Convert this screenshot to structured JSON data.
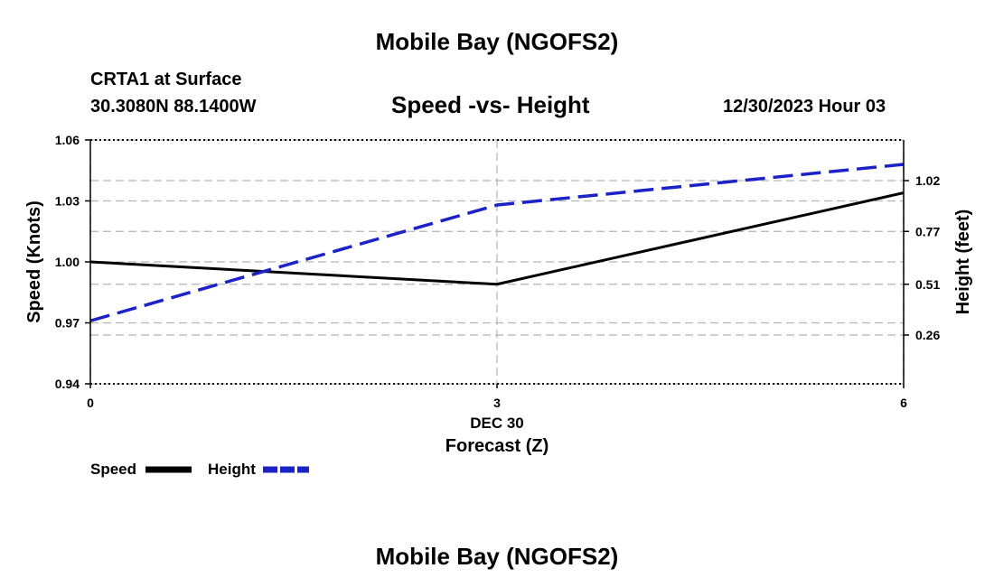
{
  "page": {
    "title_top": "Mobile Bay (NGOFS2)",
    "title_bottom": "Mobile Bay (NGOFS2)",
    "station": "CRTA1 at Surface",
    "coords": "30.3080N  88.1400W",
    "timestamp": "12/30/2023 Hour 03"
  },
  "colors": {
    "speed": "#000000",
    "height": "#1a22c8",
    "grid": "#b4b4b4"
  },
  "chart_data": {
    "type": "line",
    "title": "Speed -vs- Height",
    "xlabel": "Forecast (Z)",
    "x_date_label": "DEC 30",
    "ylabel": "Speed (Knots)",
    "y2label": "Height (feet)",
    "x": [
      0,
      3,
      6
    ],
    "xlim": [
      0,
      6
    ],
    "xticks": [
      "0",
      "3",
      "6"
    ],
    "ylim": [
      0.94,
      1.06
    ],
    "yticks": [
      "0.94",
      "0.97",
      "1.00",
      "1.03",
      "1.06"
    ],
    "y2lim": [
      0.02,
      1.22
    ],
    "y2ticks": [
      "0.26",
      "0.51",
      "0.77",
      "1.02"
    ],
    "grid": true,
    "series": [
      {
        "name": "Speed",
        "axis": "left",
        "style": "solid",
        "x": [
          0,
          3,
          6
        ],
        "values": [
          1.0,
          0.989,
          1.034
        ]
      },
      {
        "name": "Height",
        "axis": "right",
        "style": "dashed",
        "x": [
          0,
          3,
          6
        ],
        "values": [
          0.33,
          0.9,
          1.1
        ]
      }
    ],
    "legend": [
      "Speed",
      "Height"
    ],
    "legend_position": "bottom-left"
  }
}
